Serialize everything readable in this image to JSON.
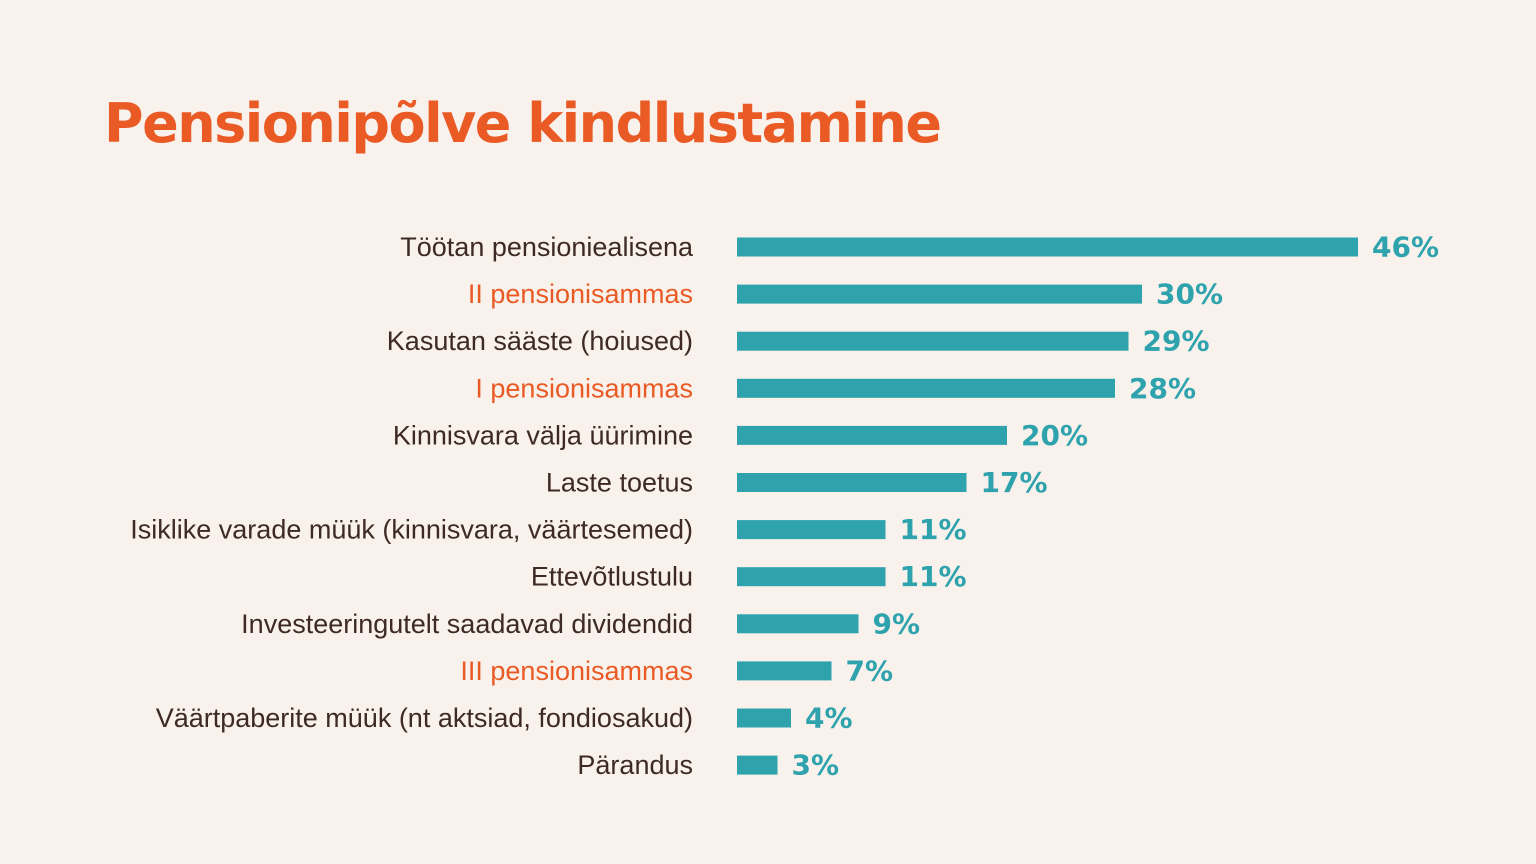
{
  "colors": {
    "background": "#f9f1eb",
    "accent": "#ea5a24",
    "bar": "#2ea3ad",
    "text": "#3d2a26"
  },
  "chart_data": {
    "type": "bar",
    "orientation": "horizontal",
    "title": "Pensionipõlve kindlustamine",
    "xlabel": "",
    "ylabel": "",
    "grid": false,
    "legend": "none",
    "xlim": [
      0,
      46
    ],
    "value_suffix": "%",
    "categories": [
      "Töötan pensioniealisena",
      "II pensionisammas",
      "Kasutan sääste (hoiused)",
      "I pensionisammas",
      "Kinnisvara välja üürimine",
      "Laste toetus",
      "Isiklike varade müük (kinnisvara, väärtesemed)",
      "Ettevõtlustulu",
      "Investeeringutelt saadavad dividendid",
      "III pensionisammas",
      "Väärtpaberite müük (nt aktsiad, fondiosakud)",
      "Pärandus"
    ],
    "highlighted": [
      false,
      true,
      false,
      true,
      false,
      false,
      false,
      false,
      false,
      true,
      false,
      false
    ],
    "values": [
      46,
      30,
      29,
      28,
      20,
      17,
      11,
      11,
      9,
      7,
      4,
      3
    ],
    "value_labels": [
      "46%",
      "30%",
      "29%",
      "28%",
      "20%",
      "17%",
      "11%",
      "11%",
      "9%",
      "7%",
      "4%",
      "3%"
    ]
  }
}
